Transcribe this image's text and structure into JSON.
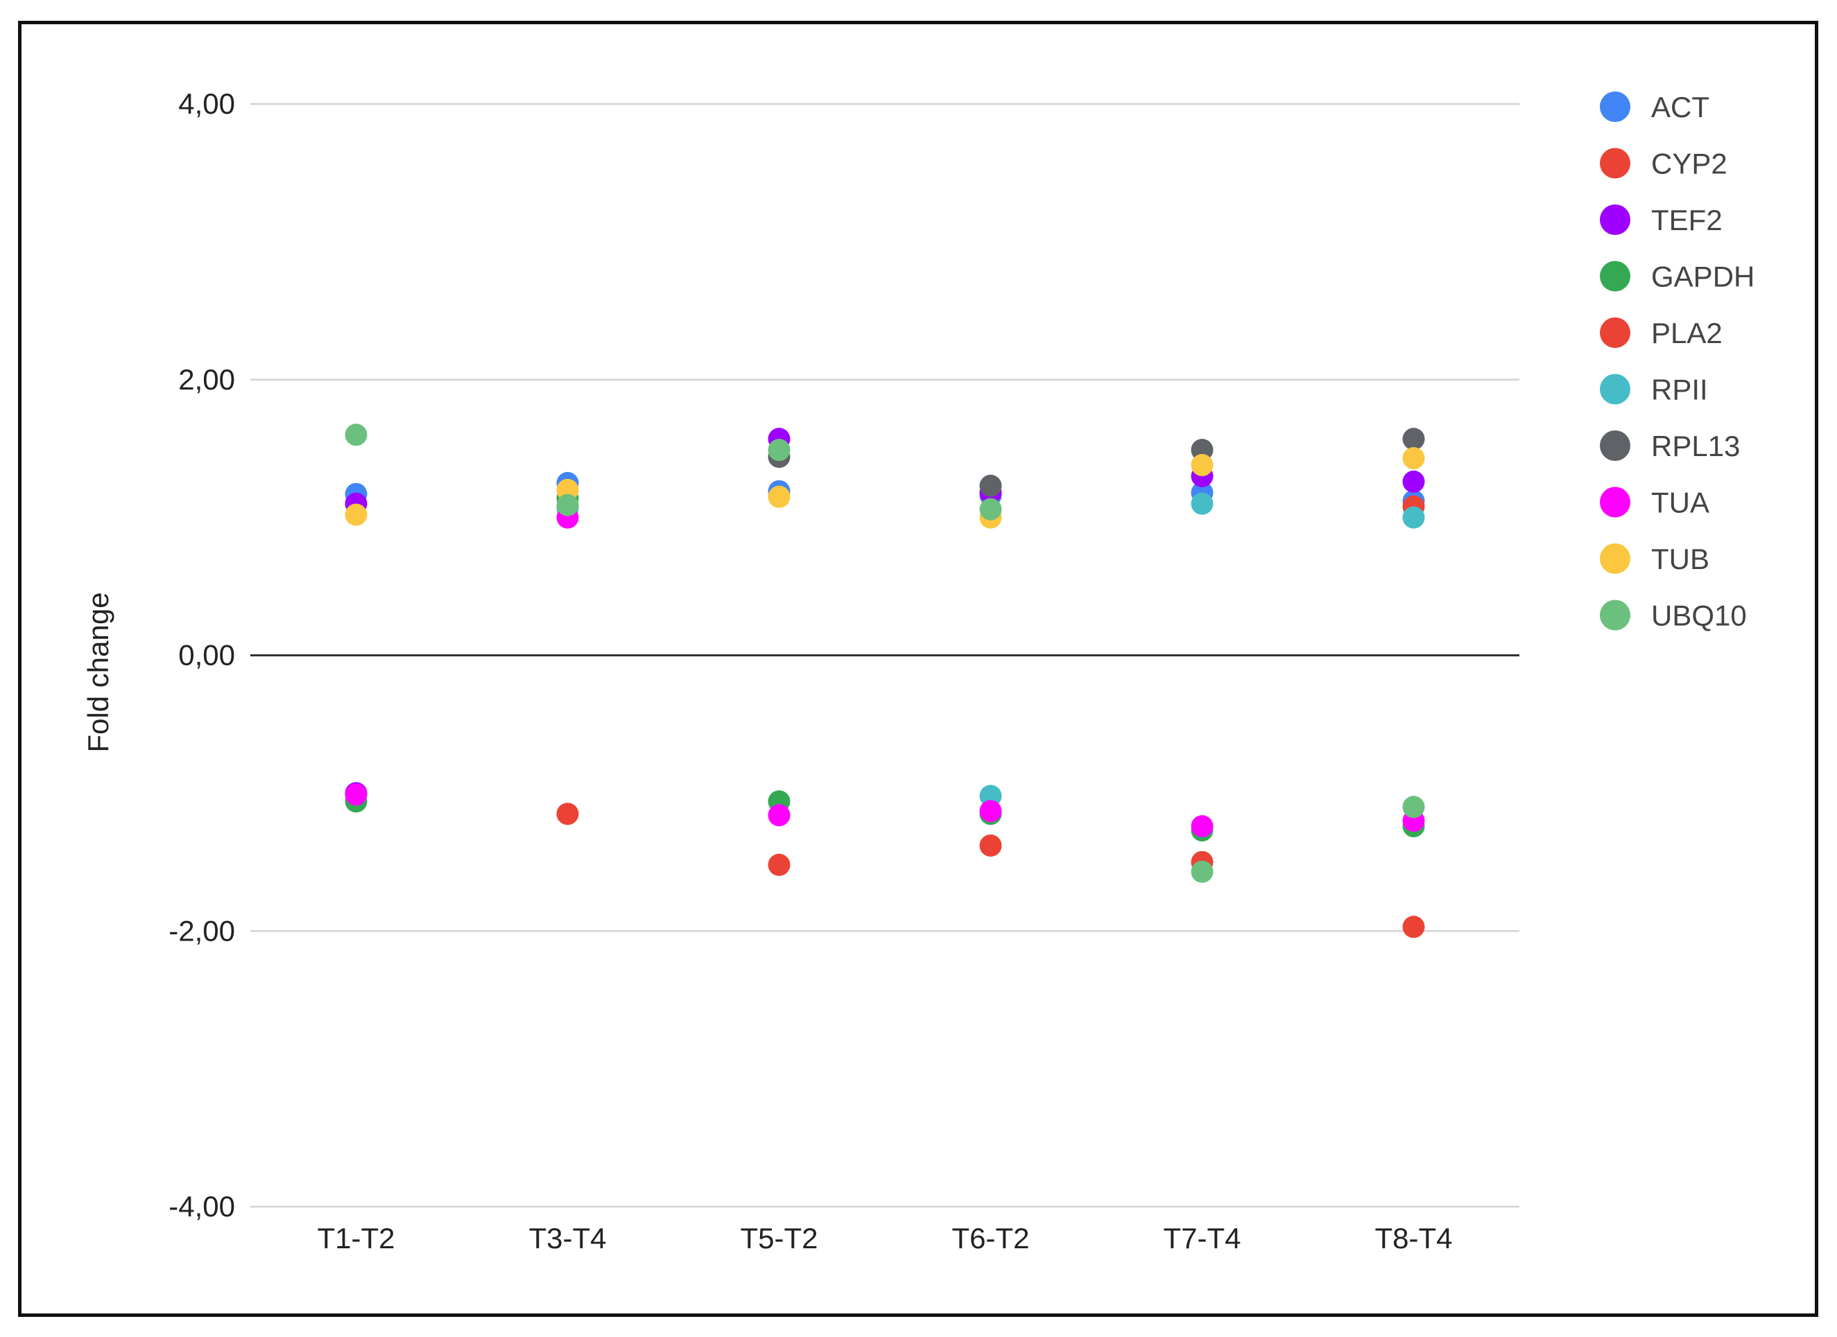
{
  "chart_data": {
    "type": "scatter",
    "ylabel": "Fold change",
    "xlabel": "",
    "ylim": [
      -4,
      4
    ],
    "yticks": [
      4,
      2,
      0,
      -2,
      -4
    ],
    "ytick_labels": [
      "4,00",
      "2,00",
      "0,00",
      "-2,00",
      "-4,00"
    ],
    "categories": [
      "T1-T2",
      "T3-T4",
      "T5-T2",
      "T6-T2",
      "T7-T4",
      "T8-T4"
    ],
    "grid": true,
    "legend_position": "right",
    "series": [
      {
        "name": "ACT",
        "color": "#4285F4",
        "values": [
          [
            1.17
          ],
          [
            1.25
          ],
          [
            1.19
          ],
          [
            1.16
          ],
          [
            1.18
          ],
          [
            1.12
          ]
        ]
      },
      {
        "name": "CYP2",
        "color": "#EA4335",
        "values": [
          [],
          [
            -1.15
          ],
          [
            -1.52
          ],
          [
            -1.38
          ],
          [
            -1.5
          ],
          [
            1.08,
            -1.97
          ]
        ]
      },
      {
        "name": "TEF2",
        "color": "#9D00FF",
        "values": [
          [
            1.1,
            -1.0
          ],
          [],
          [
            1.57
          ],
          [
            1.18
          ],
          [
            1.3
          ],
          [
            1.26
          ]
        ]
      },
      {
        "name": "GAPDH",
        "color": "#34A853",
        "values": [
          [
            -1.06
          ],
          [
            1.14
          ],
          [
            -1.06
          ],
          [
            -1.15
          ],
          [
            -1.27
          ],
          [
            -1.24
          ]
        ]
      },
      {
        "name": "PLA2",
        "color": "#EA4335",
        "values": [
          [],
          [],
          [],
          [],
          [],
          []
        ]
      },
      {
        "name": "RPII",
        "color": "#46BDC6",
        "values": [
          [],
          [
            1.07
          ],
          [],
          [
            -1.02
          ],
          [
            1.1
          ],
          [
            1.0
          ]
        ]
      },
      {
        "name": "RPL13",
        "color": "#5F6368",
        "values": [
          [],
          [],
          [
            1.44
          ],
          [
            1.23
          ],
          [
            1.49
          ],
          [
            1.57
          ]
        ]
      },
      {
        "name": "TUA",
        "color": "#FF00FF",
        "values": [
          [
            -1.01
          ],
          [
            1.0
          ],
          [
            -1.16
          ],
          [
            -1.13
          ],
          [
            -1.24
          ],
          [
            -1.2
          ]
        ]
      },
      {
        "name": "TUB",
        "color": "#FBC740",
        "values": [
          [
            1.02
          ],
          [
            1.2
          ],
          [
            1.15
          ],
          [
            1.0
          ],
          [
            1.38
          ],
          [
            1.43
          ]
        ]
      },
      {
        "name": "UBQ10",
        "color": "#6CC07D",
        "values": [
          [
            1.6
          ],
          [
            1.09
          ],
          [
            1.49
          ],
          [
            1.06
          ],
          [
            -1.57
          ],
          [
            -1.1
          ]
        ]
      }
    ]
  }
}
